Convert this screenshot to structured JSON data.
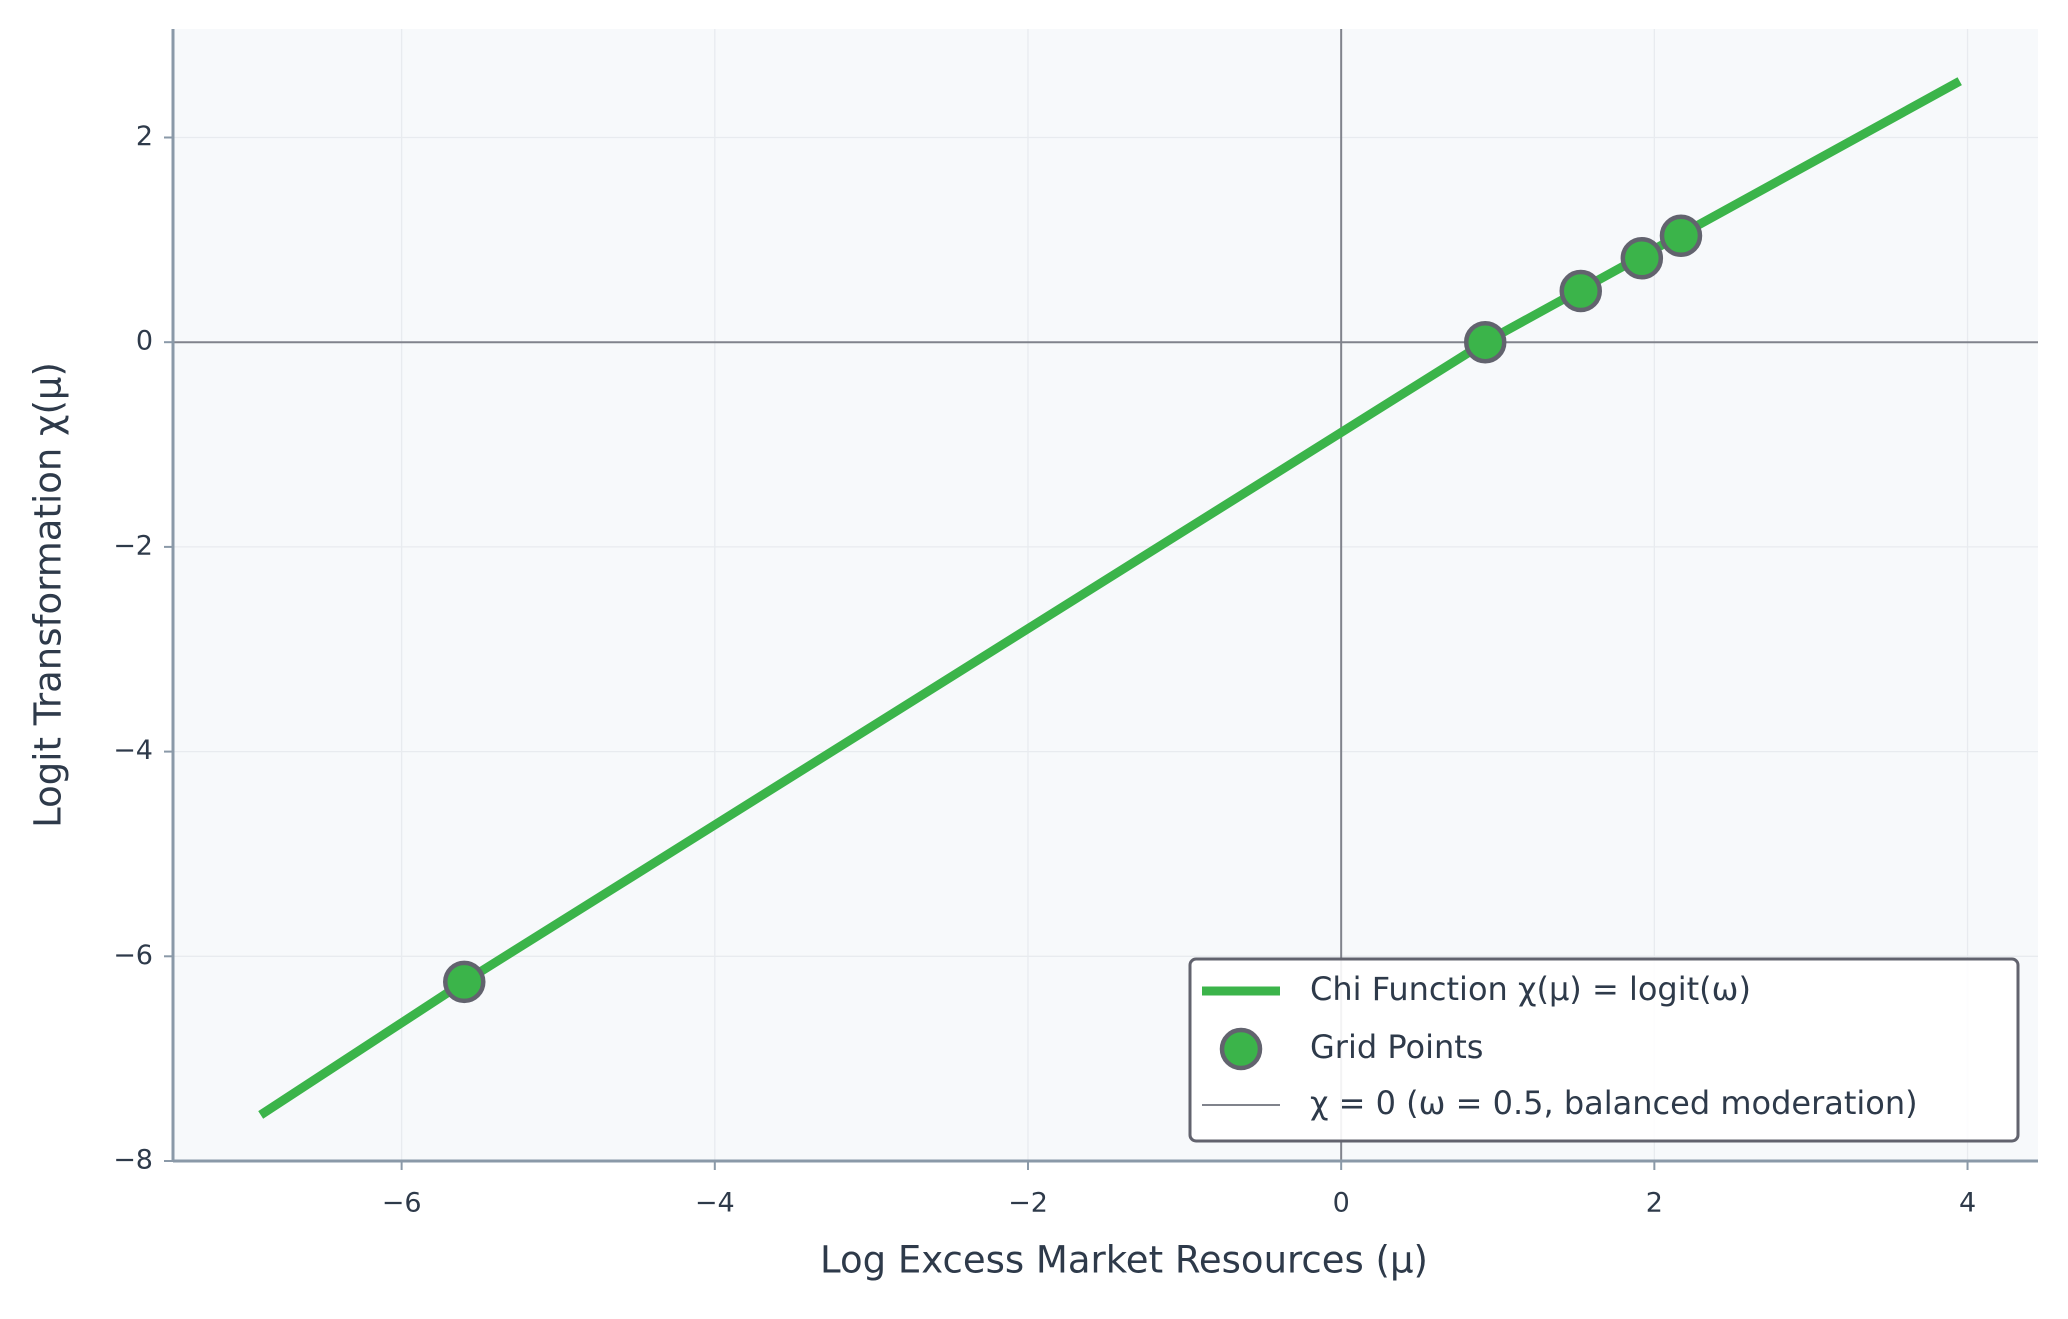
{
  "chart_data": {
    "type": "line",
    "xlabel": "Log Excess Market Resources (μ)",
    "ylabel": "Logit Transformation χ(μ)",
    "xlim": [
      -7.46,
      4.45
    ],
    "ylim": [
      -8,
      3.06
    ],
    "xticks": [
      {
        "value": -6,
        "label": "−6"
      },
      {
        "value": -4,
        "label": "−4"
      },
      {
        "value": -2,
        "label": "−2"
      },
      0,
      2,
      4
    ],
    "yticks": [
      {
        "value": -8,
        "label": "−8"
      },
      {
        "value": -6,
        "label": "−6"
      },
      {
        "value": -4,
        "label": "−4"
      },
      {
        "value": -2,
        "label": "−2"
      },
      0,
      2
    ],
    "grid": true,
    "legend": "lower right",
    "series": [
      {
        "name": "Chi Function χ(μ) = logit(ω)",
        "kind": "line",
        "color": "#3bb44a",
        "x": [
          -6.9,
          -5.6,
          0.92,
          3.95
        ],
        "values": [
          -7.55,
          -6.25,
          0,
          2.55
        ]
      },
      {
        "name": "Grid Points",
        "kind": "scatter",
        "color": "#3bb44a",
        "edge": "#62636e",
        "x": [
          -5.6,
          0.92,
          1.53,
          1.92,
          2.17
        ],
        "values": [
          -6.25,
          0,
          0.5,
          0.82,
          1.04
        ]
      }
    ],
    "hline": {
      "name": "χ = 0 (ω = 0.5, balanced moderation)",
      "value": 0,
      "color": "#80838c"
    },
    "vline": {
      "value": 0,
      "color": "#80838c"
    }
  }
}
